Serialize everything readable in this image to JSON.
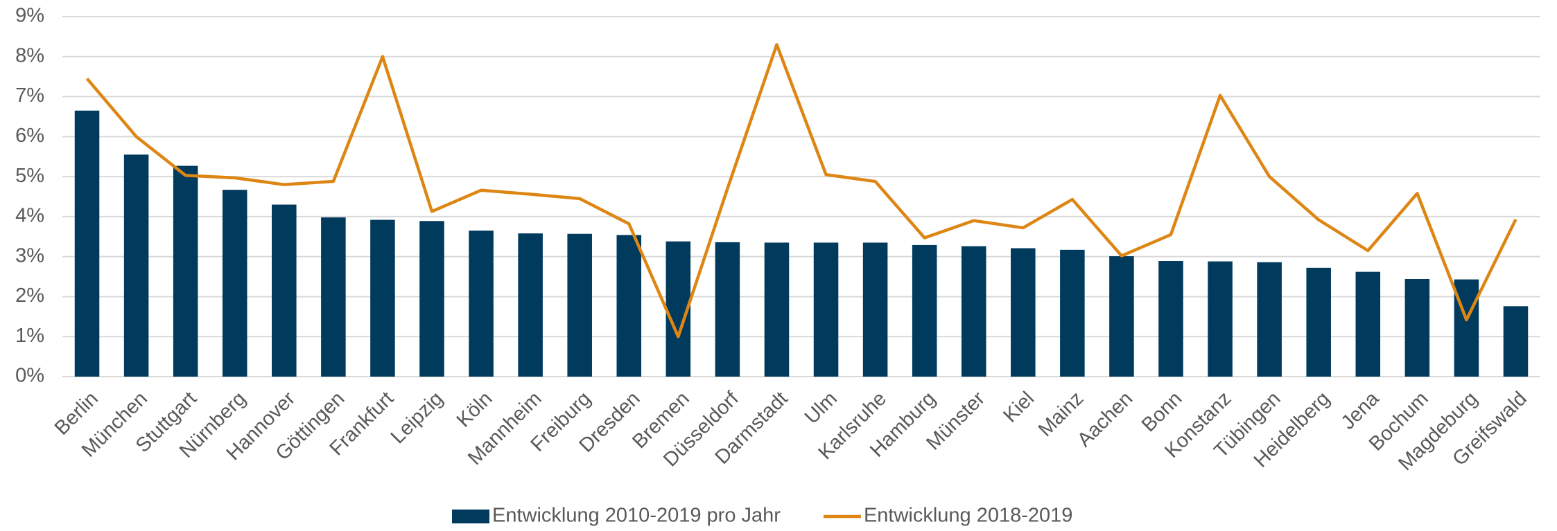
{
  "chart_data": {
    "type": "bar",
    "categories": [
      "Berlin",
      "München",
      "Stuttgart",
      "Nürnberg",
      "Hannover",
      "Göttingen",
      "Frankfurt",
      "Leipzig",
      "Köln",
      "Mannheim",
      "Freiburg",
      "Dresden",
      "Bremen",
      "Düsseldorf",
      "Darmstadt",
      "Ulm",
      "Karlsruhe",
      "Hamburg",
      "Münster",
      "Kiel",
      "Mainz",
      "Aachen",
      "Bonn",
      "Konstanz",
      "Tübingen",
      "Heidelberg",
      "Jena",
      "Bochum",
      "Magdeburg",
      "Greifswald"
    ],
    "series": [
      {
        "name": "Entwicklung 2010-2019 pro Jahr",
        "type": "bar",
        "color": "#003a5d",
        "values": [
          6.65,
          5.55,
          5.27,
          4.67,
          4.3,
          3.98,
          3.92,
          3.89,
          3.65,
          3.58,
          3.57,
          3.54,
          3.38,
          3.36,
          3.35,
          3.35,
          3.35,
          3.29,
          3.26,
          3.21,
          3.17,
          3.01,
          2.89,
          2.88,
          2.86,
          2.72,
          2.62,
          2.44,
          2.43,
          1.76
        ]
      },
      {
        "name": "Entwicklung 2018-2019",
        "type": "line",
        "color": "#dd8614",
        "values": [
          7.45,
          6.0,
          5.03,
          4.97,
          4.8,
          4.88,
          8.0,
          4.13,
          4.66,
          4.56,
          4.45,
          3.82,
          1.0,
          4.7,
          8.3,
          5.05,
          4.88,
          3.47,
          3.9,
          3.72,
          4.43,
          3.02,
          3.55,
          7.03,
          5.0,
          3.92,
          3.15,
          4.58,
          1.42,
          3.93
        ]
      }
    ],
    "ylim": [
      0,
      9
    ],
    "yticks": [
      {
        "value": 0,
        "label": "0%"
      },
      {
        "value": 1,
        "label": "1%"
      },
      {
        "value": 2,
        "label": "2%"
      },
      {
        "value": 3,
        "label": "3%"
      },
      {
        "value": 4,
        "label": "4%"
      },
      {
        "value": 5,
        "label": "5%"
      },
      {
        "value": 6,
        "label": "6%"
      },
      {
        "value": 7,
        "label": "7%"
      },
      {
        "value": 8,
        "label": "8%"
      },
      {
        "value": 9,
        "label": "9%"
      }
    ],
    "grid": true,
    "legend": "bottom"
  }
}
